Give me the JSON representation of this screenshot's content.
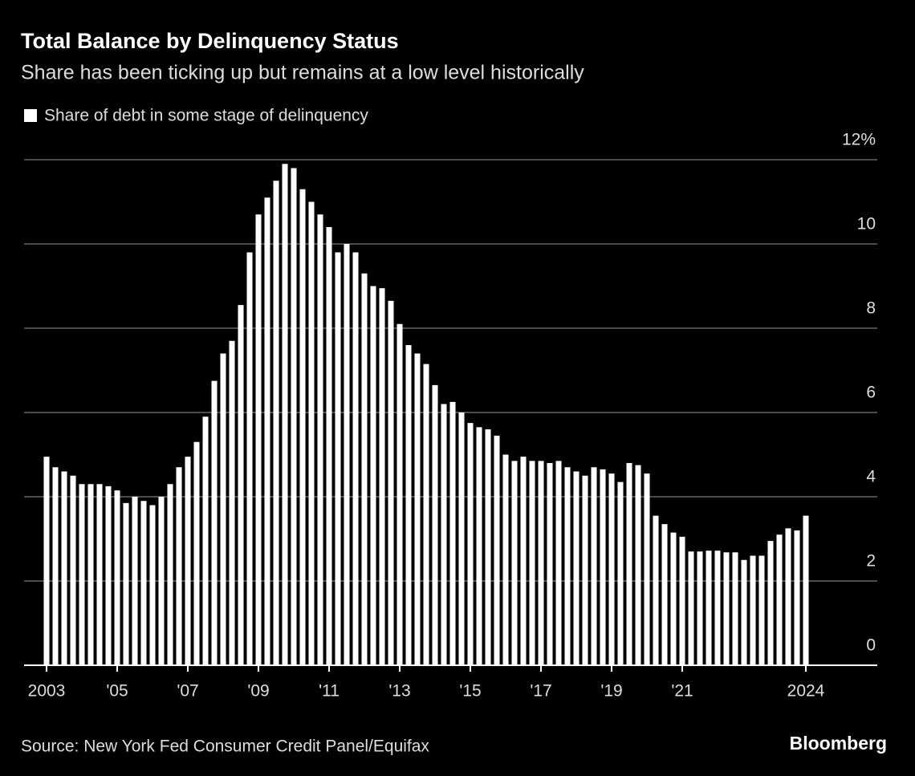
{
  "chart_data": {
    "type": "bar",
    "title": "Total Balance by Delinquency Status",
    "subtitle": "Share has been ticking up but remains at a low level historically",
    "source": "Source: New York Fed Consumer Credit Panel/Equifax",
    "brand": "Bloomberg",
    "series": [
      {
        "name": "Share of debt in some stage of delinquency",
        "color": "#ffffff",
        "values": [
          4.95,
          4.7,
          4.6,
          4.5,
          4.3,
          4.3,
          4.3,
          4.25,
          4.15,
          3.85,
          4.0,
          3.9,
          3.8,
          4.0,
          4.3,
          4.7,
          4.95,
          5.3,
          5.9,
          6.75,
          7.4,
          7.7,
          8.55,
          9.8,
          10.7,
          11.1,
          11.5,
          11.9,
          11.8,
          11.3,
          11.0,
          10.7,
          10.4,
          9.8,
          10.0,
          9.8,
          9.3,
          9.0,
          8.95,
          8.65,
          8.1,
          7.6,
          7.4,
          7.15,
          6.65,
          6.2,
          6.25,
          6.0,
          5.75,
          5.65,
          5.6,
          5.45,
          5.0,
          4.85,
          4.95,
          4.85,
          4.85,
          4.8,
          4.85,
          4.7,
          4.6,
          4.5,
          4.7,
          4.65,
          4.55,
          4.35,
          4.8,
          4.75,
          4.55,
          3.55,
          3.35,
          3.15,
          3.05,
          2.7,
          2.7,
          2.72,
          2.72,
          2.68,
          2.68,
          2.5,
          2.6,
          2.6,
          2.95,
          3.1,
          3.25,
          3.2,
          3.55
        ]
      }
    ],
    "categories": [
      "2003",
      null,
      null,
      null,
      null,
      null,
      null,
      null,
      "'05",
      null,
      null,
      null,
      null,
      null,
      null,
      null,
      "'07",
      null,
      null,
      null,
      null,
      null,
      null,
      null,
      "'09",
      null,
      null,
      null,
      null,
      null,
      null,
      null,
      "'11",
      null,
      null,
      null,
      null,
      null,
      null,
      null,
      "'13",
      null,
      null,
      null,
      null,
      null,
      null,
      null,
      "'15",
      null,
      null,
      null,
      null,
      null,
      null,
      null,
      "'17",
      null,
      null,
      null,
      null,
      null,
      null,
      null,
      "'19",
      null,
      null,
      null,
      null,
      null,
      null,
      null,
      "'21",
      null,
      null,
      null,
      null,
      null,
      null,
      null,
      null,
      null,
      null,
      null,
      null,
      null,
      "2024"
    ],
    "ylim": [
      0,
      12
    ],
    "yticks": [
      0,
      2,
      4,
      6,
      8,
      10,
      {
        "value": 12,
        "label": "12%"
      }
    ],
    "grid": true
  }
}
